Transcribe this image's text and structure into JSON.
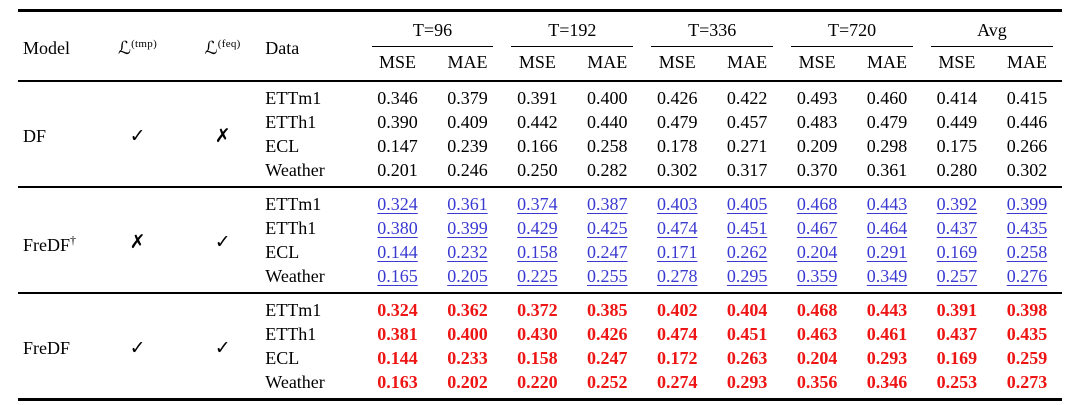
{
  "table": {
    "headers": {
      "model": "Model",
      "loss_symbol": "ℒ",
      "tmp_sup": "(tmp)",
      "feq_sup": "(feq)",
      "data": "Data"
    },
    "time_headers": [
      "T=96",
      "T=192",
      "T=336",
      "T=720",
      "Avg"
    ],
    "metric_headers": [
      "MSE",
      "MAE"
    ],
    "marks": {
      "check": "✓",
      "cross": "✗"
    },
    "colors": {
      "best_red": "#ee1515",
      "second_blue": "#3a3ad2",
      "text": "#000000"
    },
    "groups": [
      {
        "model": "DF",
        "dagger": "",
        "tmp": "✓",
        "feq": "✗",
        "style": "plain",
        "rows": [
          {
            "data": "ETTm1",
            "values": [
              "0.346",
              "0.379",
              "0.391",
              "0.400",
              "0.426",
              "0.422",
              "0.493",
              "0.460",
              "0.414",
              "0.415"
            ]
          },
          {
            "data": "ETTh1",
            "values": [
              "0.390",
              "0.409",
              "0.442",
              "0.440",
              "0.479",
              "0.457",
              "0.483",
              "0.479",
              "0.449",
              "0.446"
            ]
          },
          {
            "data": "ECL",
            "values": [
              "0.147",
              "0.239",
              "0.166",
              "0.258",
              "0.178",
              "0.271",
              "0.209",
              "0.298",
              "0.175",
              "0.266"
            ]
          },
          {
            "data": "Weather",
            "values": [
              "0.201",
              "0.246",
              "0.250",
              "0.282",
              "0.302",
              "0.317",
              "0.370",
              "0.361",
              "0.280",
              "0.302"
            ]
          }
        ]
      },
      {
        "model": "FreDF",
        "dagger": "†",
        "tmp": "✗",
        "feq": "✓",
        "style": "blue-underline",
        "rows": [
          {
            "data": "ETTm1",
            "values": [
              "0.324",
              "0.361",
              "0.374",
              "0.387",
              "0.403",
              "0.405",
              "0.468",
              "0.443",
              "0.392",
              "0.399"
            ]
          },
          {
            "data": "ETTh1",
            "values": [
              "0.380",
              "0.399",
              "0.429",
              "0.425",
              "0.474",
              "0.451",
              "0.467",
              "0.464",
              "0.437",
              "0.435"
            ]
          },
          {
            "data": "ECL",
            "values": [
              "0.144",
              "0.232",
              "0.158",
              "0.247",
              "0.171",
              "0.262",
              "0.204",
              "0.291",
              "0.169",
              "0.258"
            ]
          },
          {
            "data": "Weather",
            "values": [
              "0.165",
              "0.205",
              "0.225",
              "0.255",
              "0.278",
              "0.295",
              "0.359",
              "0.349",
              "0.257",
              "0.276"
            ]
          }
        ]
      },
      {
        "model": "FreDF",
        "dagger": "",
        "tmp": "✓",
        "feq": "✓",
        "style": "red-bold",
        "rows": [
          {
            "data": "ETTm1",
            "values": [
              "0.324",
              "0.362",
              "0.372",
              "0.385",
              "0.402",
              "0.404",
              "0.468",
              "0.443",
              "0.391",
              "0.398"
            ]
          },
          {
            "data": "ETTh1",
            "values": [
              "0.381",
              "0.400",
              "0.430",
              "0.426",
              "0.474",
              "0.451",
              "0.463",
              "0.461",
              "0.437",
              "0.435"
            ]
          },
          {
            "data": "ECL",
            "values": [
              "0.144",
              "0.233",
              "0.158",
              "0.247",
              "0.172",
              "0.263",
              "0.204",
              "0.293",
              "0.169",
              "0.259"
            ]
          },
          {
            "data": "Weather",
            "values": [
              "0.163",
              "0.202",
              "0.220",
              "0.252",
              "0.274",
              "0.293",
              "0.356",
              "0.346",
              "0.253",
              "0.273"
            ]
          }
        ]
      }
    ]
  }
}
